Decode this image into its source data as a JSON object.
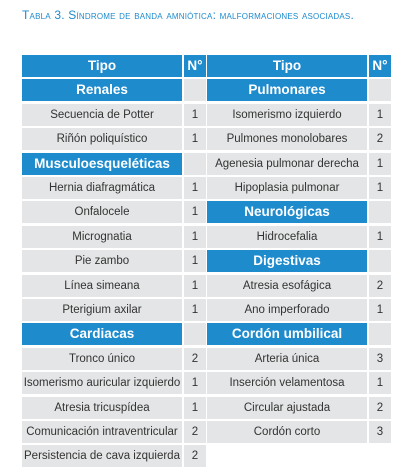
{
  "caption": "Tabla 3. Síndrome de banda amniótica: malformaciones asociadas.",
  "table": {
    "header": [
      "Tipo",
      "N°"
    ],
    "left": [
      {
        "section": "Renales",
        "rows": [
          [
            "Secuencia de Potter",
            1
          ],
          [
            "Riñón poliquístico",
            1
          ]
        ]
      },
      {
        "section": "Musculoesqueléticas",
        "rows": [
          [
            "Hernia diafragmática",
            1
          ],
          [
            "Onfalocele",
            1
          ],
          [
            "Micrognatia",
            1
          ],
          [
            "Pie zambo",
            1
          ],
          [
            "Línea simeana",
            1
          ],
          [
            "Pterigium axilar",
            1
          ]
        ]
      },
      {
        "section": "Cardiacas",
        "rows": [
          [
            "Tronco único",
            2
          ],
          [
            "Isomerismo auricular izquierdo",
            1
          ],
          [
            "Atresia tricuspídea",
            1
          ],
          [
            "Comunicación intraventricular",
            2
          ],
          [
            "Persistencia de cava izquierda",
            2
          ]
        ]
      }
    ],
    "right": [
      {
        "section": "Pulmonares",
        "rows": [
          [
            "Isomerismo izquierdo",
            1
          ],
          [
            "Pulmones monolobares",
            2
          ],
          [
            "Agenesia pulmonar derecha",
            1
          ],
          [
            "Hipoplasia pulmonar",
            1
          ]
        ]
      },
      {
        "section": "Neurológicas",
        "rows": [
          [
            "Hidrocefalia",
            1
          ]
        ]
      },
      {
        "section": "Digestivas",
        "rows": [
          [
            "Atresia esofágica",
            2
          ],
          [
            "Ano imperforado",
            1
          ]
        ]
      },
      {
        "section": "Cordón umbilical",
        "rows": [
          [
            "Arteria única",
            3
          ],
          [
            "Inserción velamentosa",
            1
          ],
          [
            "Circular ajustada",
            2
          ],
          [
            "Cordón corto",
            3
          ]
        ]
      }
    ]
  }
}
